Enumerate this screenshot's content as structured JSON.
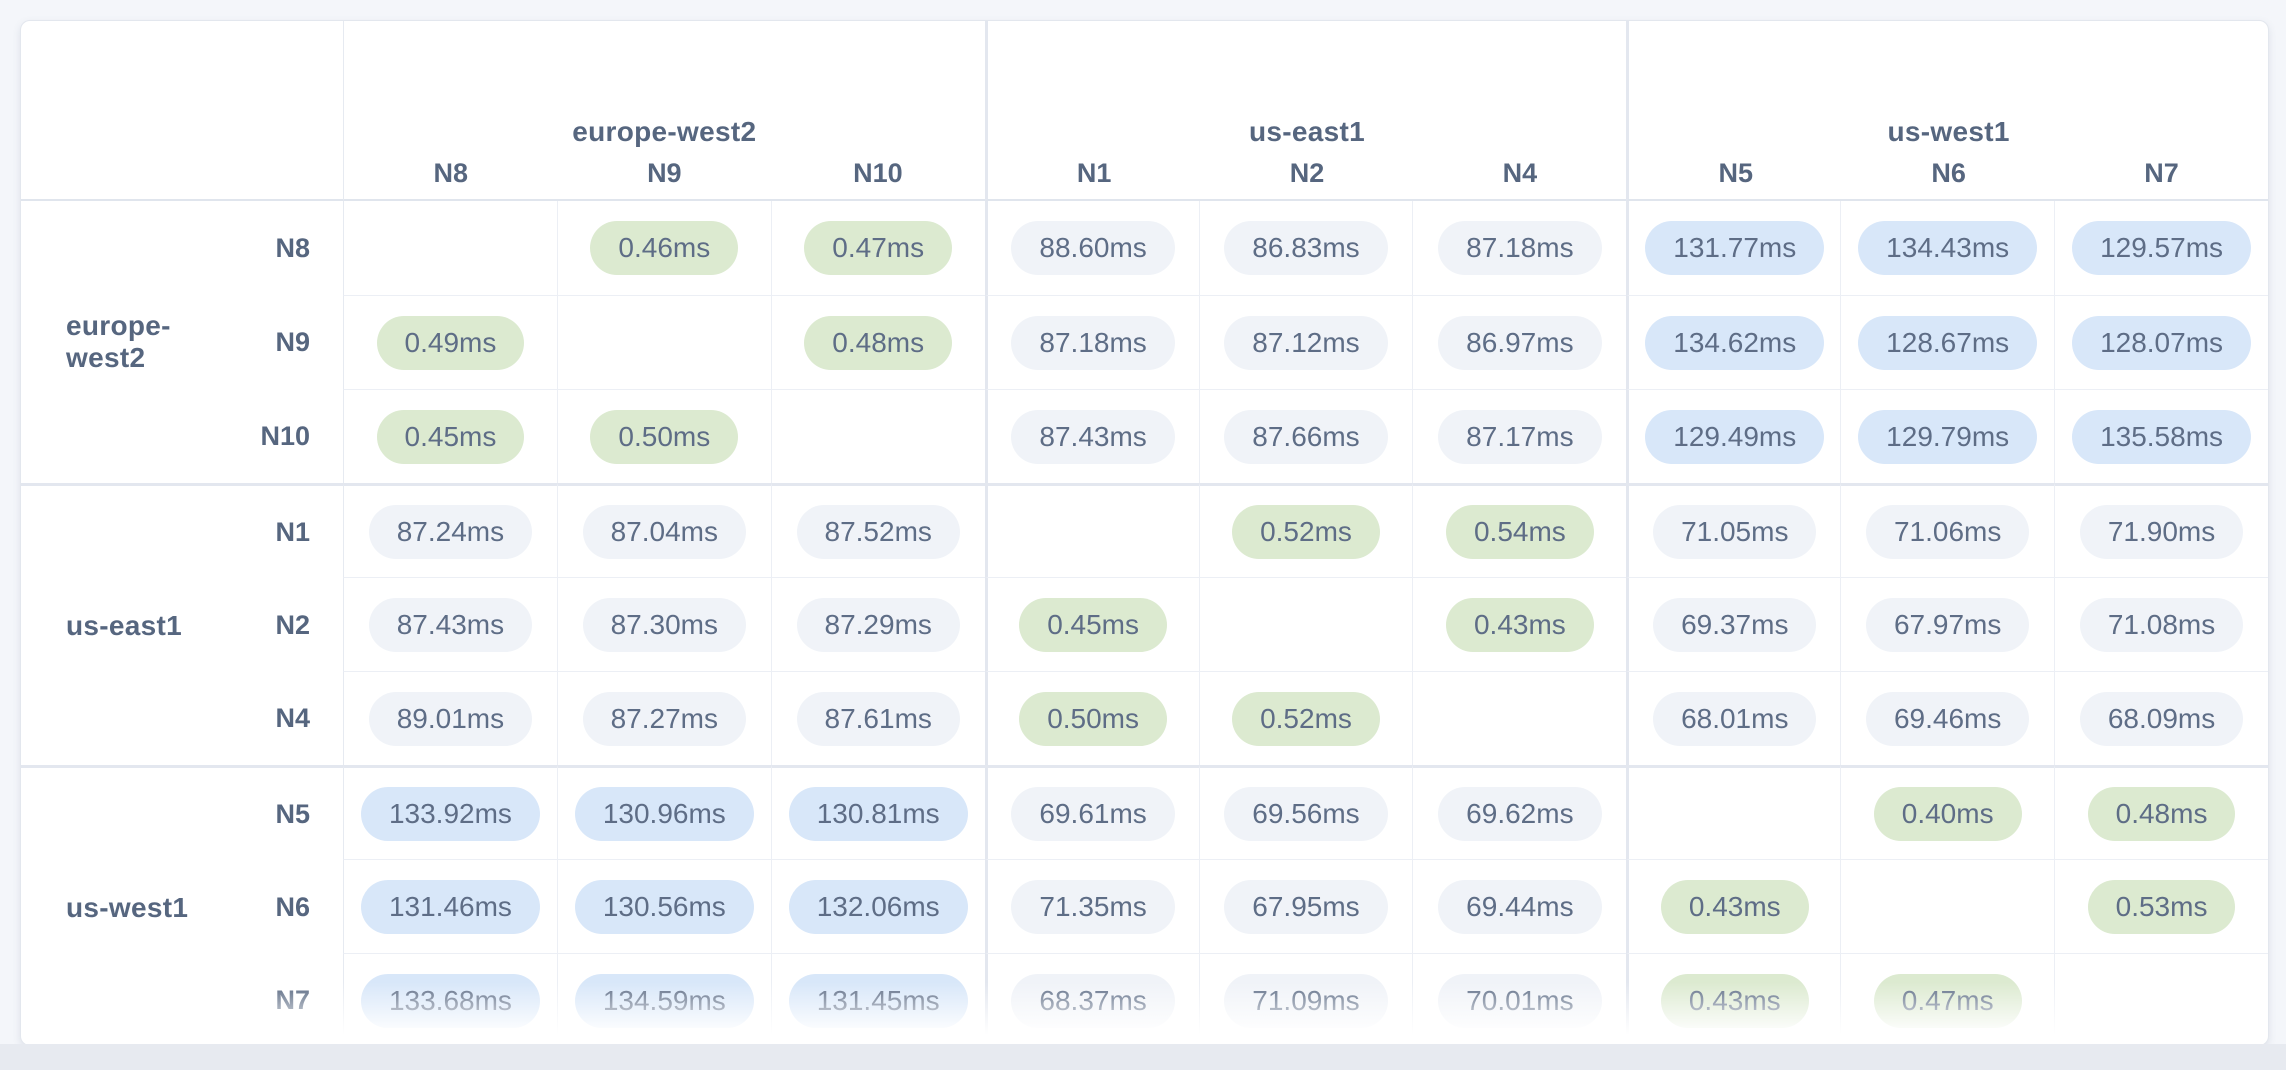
{
  "page": {
    "background": "#f4f6fa",
    "bottom_strip_color": "#e7eaf0"
  },
  "colors": {
    "pill_low_green": "#dcead0",
    "pill_mid_gray": "#f0f3f8",
    "pill_high_blue": "#d8e7f9",
    "label_text": "#56667f",
    "pill_text": "#5e6d86",
    "grid_line": "#eceff5",
    "group_line": "#e3e7ef"
  },
  "matrix": {
    "unit_suffix": "ms",
    "column_groups": [
      {
        "region": "europe-west2",
        "nodes": [
          "N8",
          "N9",
          "N10"
        ]
      },
      {
        "region": "us-east1",
        "nodes": [
          "N1",
          "N2",
          "N4"
        ]
      },
      {
        "region": "us-west1",
        "nodes": [
          "N5",
          "N6",
          "N7"
        ]
      }
    ],
    "row_groups": [
      {
        "region": "europe-west2",
        "nodes": [
          "N8",
          "N9",
          "N10"
        ]
      },
      {
        "region": "us-east1",
        "nodes": [
          "N1",
          "N2",
          "N4"
        ]
      },
      {
        "region": "us-west1",
        "nodes": [
          "N5",
          "N6",
          "N7"
        ]
      }
    ],
    "rows": [
      {
        "node": "N8",
        "values": [
          null,
          "0.46ms",
          "0.47ms",
          "88.60ms",
          "86.83ms",
          "87.18ms",
          "131.77ms",
          "134.43ms",
          "129.57ms"
        ]
      },
      {
        "node": "N9",
        "values": [
          "0.49ms",
          null,
          "0.48ms",
          "87.18ms",
          "87.12ms",
          "86.97ms",
          "134.62ms",
          "128.67ms",
          "128.07ms"
        ]
      },
      {
        "node": "N10",
        "values": [
          "0.45ms",
          "0.50ms",
          null,
          "87.43ms",
          "87.66ms",
          "87.17ms",
          "129.49ms",
          "129.79ms",
          "135.58ms"
        ]
      },
      {
        "node": "N1",
        "values": [
          "87.24ms",
          "87.04ms",
          "87.52ms",
          null,
          "0.52ms",
          "0.54ms",
          "71.05ms",
          "71.06ms",
          "71.90ms"
        ]
      },
      {
        "node": "N2",
        "values": [
          "87.43ms",
          "87.30ms",
          "87.29ms",
          "0.45ms",
          null,
          "0.43ms",
          "69.37ms",
          "67.97ms",
          "71.08ms"
        ]
      },
      {
        "node": "N4",
        "values": [
          "89.01ms",
          "87.27ms",
          "87.61ms",
          "0.50ms",
          "0.52ms",
          null,
          "68.01ms",
          "69.46ms",
          "68.09ms"
        ]
      },
      {
        "node": "N5",
        "values": [
          "133.92ms",
          "130.96ms",
          "130.81ms",
          "69.61ms",
          "69.56ms",
          "69.62ms",
          null,
          "0.40ms",
          "0.48ms"
        ]
      },
      {
        "node": "N6",
        "values": [
          "131.46ms",
          "130.56ms",
          "132.06ms",
          "71.35ms",
          "67.95ms",
          "69.44ms",
          "0.43ms",
          null,
          "0.53ms"
        ]
      },
      {
        "node": "N7",
        "values": [
          "133.68ms",
          "134.59ms",
          "131.45ms",
          "68.37ms",
          "71.09ms",
          "70.01ms",
          "0.43ms",
          "0.47ms",
          null
        ]
      }
    ]
  }
}
